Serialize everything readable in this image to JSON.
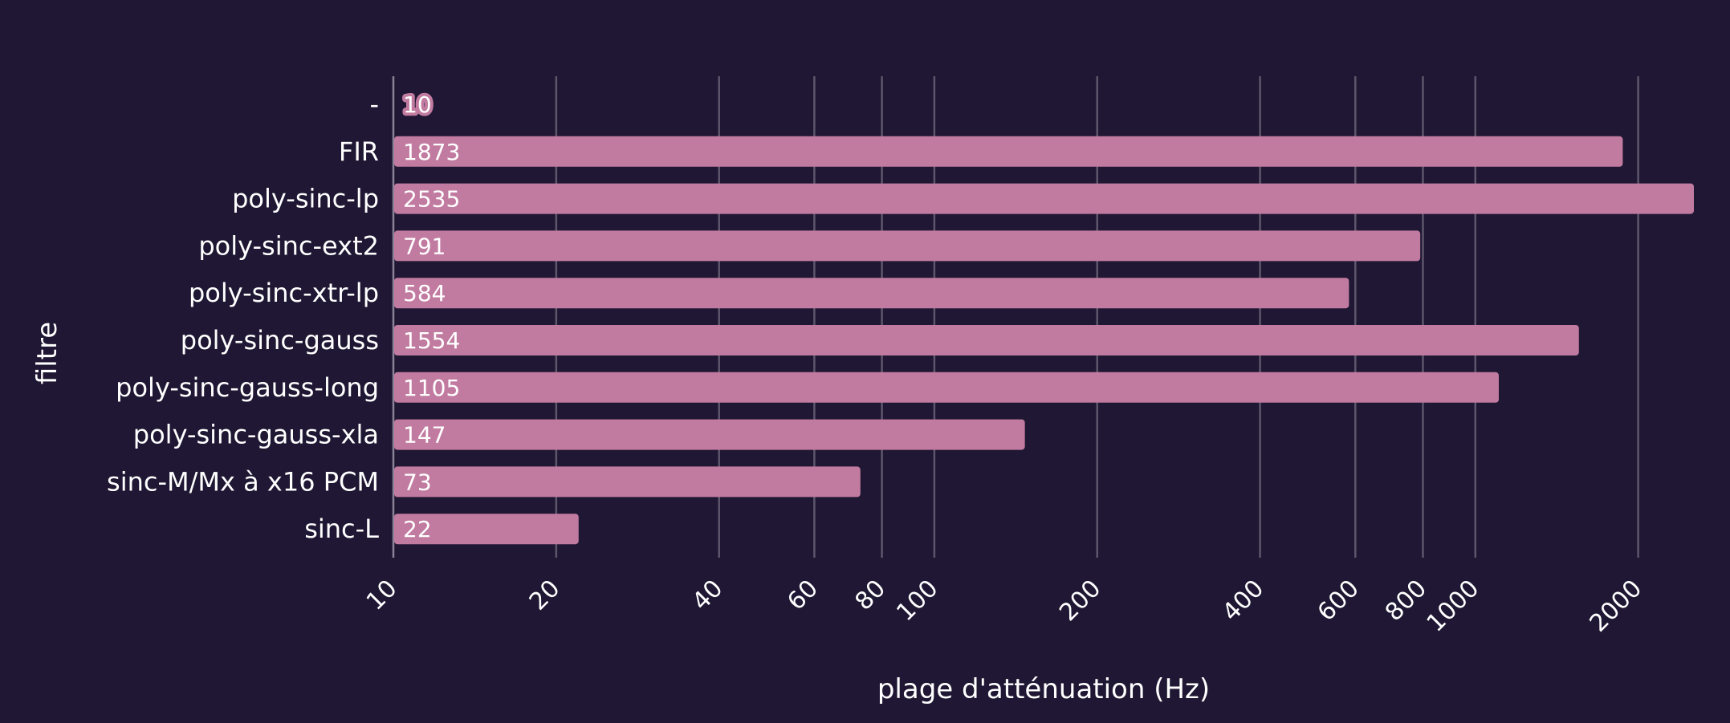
{
  "chart_data": {
    "type": "bar",
    "orientation": "horizontal",
    "xscale": "log",
    "categories": [
      "-",
      "FIR",
      "poly-sinc-lp",
      "poly-sinc-ext2",
      "poly-sinc-xtr-lp",
      "poly-sinc-gauss",
      "poly-sinc-gauss-long",
      "poly-sinc-gauss-xla",
      "sinc-M/Mx à x16 PCM",
      "sinc-L"
    ],
    "values": [
      10,
      1873,
      2535,
      791,
      584,
      1554,
      1105,
      147,
      73,
      22
    ],
    "value_labels": [
      "10",
      "1873",
      "2535",
      "791",
      "584",
      "1554",
      "1105",
      "147",
      "73",
      "22"
    ],
    "xticks": [
      10,
      20,
      40,
      60,
      80,
      100,
      200,
      400,
      600,
      800,
      1000,
      2000
    ],
    "xtick_labels": [
      "10",
      "20",
      "40",
      "60",
      "80",
      "100",
      "200",
      "400",
      "600",
      "800",
      "1000",
      "2000"
    ],
    "xlabel": "plage d'atténuation (Hz)",
    "ylabel": "filtre",
    "xlim": [
      10,
      2535
    ],
    "grid": "vertical",
    "colors": {
      "background": "#1f1733",
      "bar": "#c27ba0",
      "grid": "#5d566c",
      "text": "#ffffff"
    }
  }
}
